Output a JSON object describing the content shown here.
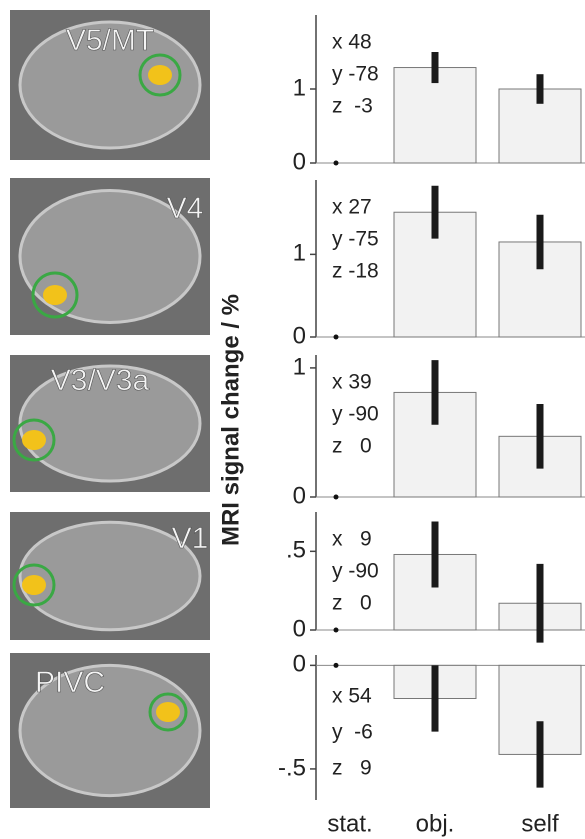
{
  "y_label": "MRI signal change / %",
  "chart_data": [
    {
      "type": "bar",
      "region": "V5/MT",
      "coords": [
        "x 48",
        "y -78",
        "z  -3"
      ],
      "values": [
        0,
        1.29,
        1.0
      ],
      "errors": [
        null,
        0.21,
        0.2
      ],
      "ylim": [
        0,
        2
      ],
      "yticks": [
        0,
        1
      ]
    },
    {
      "type": "bar",
      "region": "V4",
      "coords": [
        "x 27",
        "y -75",
        "z -18"
      ],
      "values": [
        0,
        1.51,
        1.15
      ],
      "errors": [
        null,
        0.32,
        0.33
      ],
      "ylim": [
        0,
        1.9
      ],
      "yticks": [
        0,
        1
      ]
    },
    {
      "type": "bar",
      "region": "V3/V3a",
      "coords": [
        "x 39",
        "y -90",
        "z   0"
      ],
      "values": [
        0,
        0.81,
        0.47
      ],
      "errors": [
        null,
        0.25,
        0.25
      ],
      "ylim": [
        0,
        1.1
      ],
      "yticks": [
        0,
        1
      ]
    },
    {
      "type": "bar",
      "region": "V1",
      "coords": [
        "x   9",
        "y -90",
        "z   0"
      ],
      "values": [
        0,
        0.48,
        0.17
      ],
      "errors": [
        null,
        0.21,
        0.25
      ],
      "ylim": [
        0,
        0.75
      ],
      "yticks": [
        0,
        {
          "value": 0.5,
          "label": ".5"
        }
      ]
    },
    {
      "type": "bar",
      "region": "PIVC",
      "coords": [
        "x 54",
        "y  -6",
        "z   9"
      ],
      "values": [
        0,
        -0.16,
        -0.43
      ],
      "errors": [
        null,
        0.16,
        0.16
      ],
      "ylim": [
        -0.65,
        0.05
      ],
      "yticks": [
        {
          "value": -0.5,
          "label": "-.5"
        },
        0
      ],
      "categories": [
        "stat.",
        "obj.",
        "self"
      ]
    }
  ]
}
